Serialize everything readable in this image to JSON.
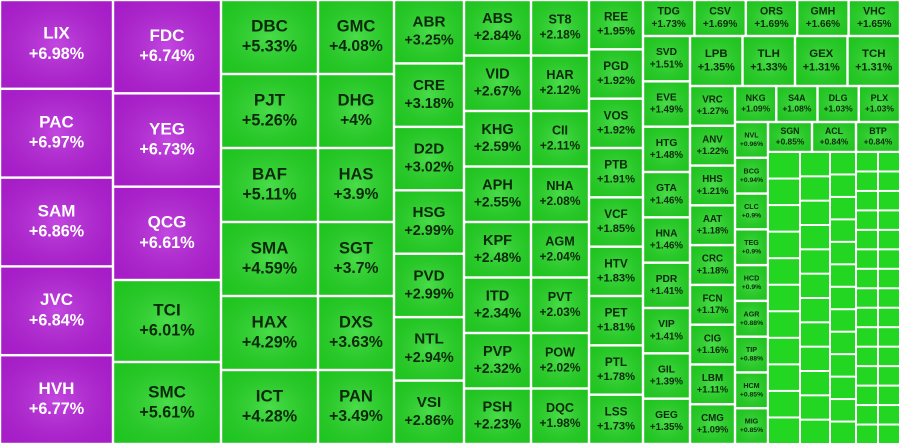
{
  "chart_data": {
    "type": "treemap",
    "tiles": [
      {
        "name": "LIX",
        "value": 6.98,
        "value_label": "+6.98%",
        "color": "#b51fd9"
      },
      {
        "name": "PAC",
        "value": 6.97,
        "value_label": "+6.97%",
        "color": "#b51fd9"
      },
      {
        "name": "SAM",
        "value": 6.86,
        "value_label": "+6.86%",
        "color": "#b51fd9"
      },
      {
        "name": "JVC",
        "value": 6.84,
        "value_label": "+6.84%",
        "color": "#b51fd9"
      },
      {
        "name": "HVH",
        "value": 6.77,
        "value_label": "+6.77%",
        "color": "#b51fd9"
      },
      {
        "name": "FDC",
        "value": 6.74,
        "value_label": "+6.74%",
        "color": "#b51fd9"
      },
      {
        "name": "YEG",
        "value": 6.73,
        "value_label": "+6.73%",
        "color": "#b51fd9"
      },
      {
        "name": "QCG",
        "value": 6.61,
        "value_label": "+6.61%",
        "color": "#b51fd9"
      },
      {
        "name": "TCI",
        "value": 6.01,
        "value_label": "+6.01%",
        "color": "#22d622"
      },
      {
        "name": "SMC",
        "value": 5.61,
        "value_label": "+5.61%",
        "color": "#22d622"
      },
      {
        "name": "DBC",
        "value": 5.33,
        "value_label": "+5.33%",
        "color": "#22d622"
      },
      {
        "name": "PJT",
        "value": 5.26,
        "value_label": "+5.26%",
        "color": "#22d622"
      },
      {
        "name": "BAF",
        "value": 5.11,
        "value_label": "+5.11%",
        "color": "#22d622"
      },
      {
        "name": "SMA",
        "value": 4.59,
        "value_label": "+4.59%",
        "color": "#22d622"
      },
      {
        "name": "HAX",
        "value": 4.29,
        "value_label": "+4.29%",
        "color": "#22d622"
      },
      {
        "name": "ICT",
        "value": 4.28,
        "value_label": "+4.28%",
        "color": "#22d622"
      },
      {
        "name": "GMC",
        "value": 4.08,
        "value_label": "+4.08%",
        "color": "#22d622"
      },
      {
        "name": "DHG",
        "value": 4,
        "value_label": "+4%",
        "color": "#22d622"
      },
      {
        "name": "HAS",
        "value": 3.9,
        "value_label": "+3.9%",
        "color": "#22d622"
      },
      {
        "name": "SGT",
        "value": 3.7,
        "value_label": "+3.7%",
        "color": "#22d622"
      },
      {
        "name": "DXS",
        "value": 3.63,
        "value_label": "+3.63%",
        "color": "#22d622"
      },
      {
        "name": "PAN",
        "value": 3.49,
        "value_label": "+3.49%",
        "color": "#22d622"
      },
      {
        "name": "ABR",
        "value": 3.25,
        "value_label": "+3.25%",
        "color": "#22d622"
      },
      {
        "name": "CRE",
        "value": 3.18,
        "value_label": "+3.18%",
        "color": "#22d622"
      },
      {
        "name": "D2D",
        "value": 3.02,
        "value_label": "+3.02%",
        "color": "#22d622"
      },
      {
        "name": "HSG",
        "value": 2.99,
        "value_label": "+2.99%",
        "color": "#22d622"
      },
      {
        "name": "PVD",
        "value": 2.99,
        "value_label": "+2.99%",
        "color": "#22d622"
      },
      {
        "name": "NTL",
        "value": 2.94,
        "value_label": "+2.94%",
        "color": "#22d622"
      },
      {
        "name": "VSI",
        "value": 2.86,
        "value_label": "+2.86%",
        "color": "#22d622"
      },
      {
        "name": "ABS",
        "value": 2.84,
        "value_label": "+2.84%",
        "color": "#22d622"
      },
      {
        "name": "VID",
        "value": 2.67,
        "value_label": "+2.67%",
        "color": "#22d622"
      },
      {
        "name": "KHG",
        "value": 2.59,
        "value_label": "+2.59%",
        "color": "#22d622"
      },
      {
        "name": "APH",
        "value": 2.55,
        "value_label": "+2.55%",
        "color": "#22d622"
      },
      {
        "name": "KPF",
        "value": 2.48,
        "value_label": "+2.48%",
        "color": "#22d622"
      },
      {
        "name": "ITD",
        "value": 2.34,
        "value_label": "+2.34%",
        "color": "#22d622"
      },
      {
        "name": "PVP",
        "value": 2.32,
        "value_label": "+2.32%",
        "color": "#22d622"
      },
      {
        "name": "PSH",
        "value": 2.23,
        "value_label": "+2.23%",
        "color": "#22d622"
      },
      {
        "name": "ST8",
        "value": 2.18,
        "value_label": "+2.18%",
        "color": "#22d622"
      },
      {
        "name": "HAR",
        "value": 2.12,
        "value_label": "+2.12%",
        "color": "#22d622"
      },
      {
        "name": "CII",
        "value": 2.11,
        "value_label": "+2.11%",
        "color": "#22d622"
      },
      {
        "name": "NHA",
        "value": 2.08,
        "value_label": "+2.08%",
        "color": "#22d622"
      },
      {
        "name": "AGM",
        "value": 2.04,
        "value_label": "+2.04%",
        "color": "#22d622"
      },
      {
        "name": "PVT",
        "value": 2.03,
        "value_label": "+2.03%",
        "color": "#22d622"
      },
      {
        "name": "POW",
        "value": 2.02,
        "value_label": "+2.02%",
        "color": "#22d622"
      },
      {
        "name": "DQC",
        "value": 1.98,
        "value_label": "+1.98%",
        "color": "#22d622"
      },
      {
        "name": "REE",
        "value": 1.95,
        "value_label": "+1.95%",
        "color": "#22d622"
      },
      {
        "name": "PGD",
        "value": 1.92,
        "value_label": "+1.92%",
        "color": "#22d622"
      },
      {
        "name": "VOS",
        "value": 1.92,
        "value_label": "+1.92%",
        "color": "#22d622"
      },
      {
        "name": "PTB",
        "value": 1.91,
        "value_label": "+1.91%",
        "color": "#22d622"
      },
      {
        "name": "VCF",
        "value": 1.85,
        "value_label": "+1.85%",
        "color": "#22d622"
      },
      {
        "name": "HTV",
        "value": 1.83,
        "value_label": "+1.83%",
        "color": "#22d622"
      },
      {
        "name": "PET",
        "value": 1.81,
        "value_label": "+1.81%",
        "color": "#22d622"
      },
      {
        "name": "PTL",
        "value": 1.78,
        "value_label": "+1.78%",
        "color": "#22d622"
      },
      {
        "name": "LSS",
        "value": 1.73,
        "value_label": "+1.73%",
        "color": "#22d622"
      },
      {
        "name": "TDG",
        "value": 1.73,
        "value_label": "+1.73%",
        "color": "#22d622"
      },
      {
        "name": "CSV",
        "value": 1.69,
        "value_label": "+1.69%",
        "color": "#22d622"
      },
      {
        "name": "ORS",
        "value": 1.69,
        "value_label": "+1.69%",
        "color": "#22d622"
      },
      {
        "name": "GMH",
        "value": 1.66,
        "value_label": "+1.66%",
        "color": "#22d622"
      },
      {
        "name": "VHC",
        "value": 1.65,
        "value_label": "+1.65%",
        "color": "#22d622"
      },
      {
        "name": "SVD",
        "value": 1.51,
        "value_label": "+1.51%",
        "color": "#22d622"
      },
      {
        "name": "EVE",
        "value": 1.49,
        "value_label": "+1.49%",
        "color": "#22d622"
      },
      {
        "name": "HTG",
        "value": 1.48,
        "value_label": "+1.48%",
        "color": "#22d622"
      },
      {
        "name": "GTA",
        "value": 1.46,
        "value_label": "+1.46%",
        "color": "#22d622"
      },
      {
        "name": "HNA",
        "value": 1.46,
        "value_label": "+1.46%",
        "color": "#22d622"
      },
      {
        "name": "PDR",
        "value": 1.41,
        "value_label": "+1.41%",
        "color": "#22d622"
      },
      {
        "name": "VIP",
        "value": 1.41,
        "value_label": "+1.41%",
        "color": "#22d622"
      },
      {
        "name": "GIL",
        "value": 1.39,
        "value_label": "+1.39%",
        "color": "#22d622"
      },
      {
        "name": "GEG",
        "value": 1.35,
        "value_label": "+1.35%",
        "color": "#22d622"
      },
      {
        "name": "LPB",
        "value": 1.35,
        "value_label": "+1.35%",
        "color": "#22d622"
      },
      {
        "name": "TLH",
        "value": 1.33,
        "value_label": "+1.33%",
        "color": "#22d622"
      },
      {
        "name": "GEX",
        "value": 1.31,
        "value_label": "+1.31%",
        "color": "#22d622"
      },
      {
        "name": "TCH",
        "value": 1.31,
        "value_label": "+1.31%",
        "color": "#22d622"
      },
      {
        "name": "VRC",
        "value": 1.27,
        "value_label": "+1.27%",
        "color": "#22d622"
      },
      {
        "name": "ANV",
        "value": 1.22,
        "value_label": "+1.22%",
        "color": "#22d622"
      },
      {
        "name": "HHS",
        "value": 1.21,
        "value_label": "+1.21%",
        "color": "#22d622"
      },
      {
        "name": "AAT",
        "value": 1.18,
        "value_label": "+1.18%",
        "color": "#22d622"
      },
      {
        "name": "CRC",
        "value": 1.18,
        "value_label": "+1.18%",
        "color": "#22d622"
      },
      {
        "name": "FCN",
        "value": 1.17,
        "value_label": "+1.17%",
        "color": "#22d622"
      },
      {
        "name": "CIG",
        "value": 1.16,
        "value_label": "+1.16%",
        "color": "#22d622"
      },
      {
        "name": "LBM",
        "value": 1.11,
        "value_label": "+1.11%",
        "color": "#22d622"
      },
      {
        "name": "CMG",
        "value": 1.09,
        "value_label": "+1.09%",
        "color": "#22d622"
      },
      {
        "name": "NKG",
        "value": 1.09,
        "value_label": "+1.09%",
        "color": "#22d622"
      },
      {
        "name": "S4A",
        "value": 1.08,
        "value_label": "+1.08%",
        "color": "#22d622"
      },
      {
        "name": "DLG",
        "value": 1.03,
        "value_label": "+1.03%",
        "color": "#22d622"
      },
      {
        "name": "PLX",
        "value": 1.03,
        "value_label": "+1.03%",
        "color": "#22d622"
      },
      {
        "name": "NVL",
        "value": 0.96,
        "value_label": "+0.96%",
        "color": "#22d622"
      },
      {
        "name": "BCG",
        "value": 0.94,
        "value_label": "+0.94%",
        "color": "#22d622"
      },
      {
        "name": "CLC",
        "value": 0.9,
        "value_label": "+0.9%",
        "color": "#22d622"
      },
      {
        "name": "TEG",
        "value": 0.9,
        "value_label": "+0.9%",
        "color": "#22d622"
      },
      {
        "name": "HCD",
        "value": 0.9,
        "value_label": "+0.9%",
        "color": "#22d622"
      },
      {
        "name": "AGR",
        "value": 0.88,
        "value_label": "+0.88%",
        "color": "#22d622"
      },
      {
        "name": "TIP",
        "value": 0.88,
        "value_label": "+0.88%",
        "color": "#22d622"
      },
      {
        "name": "HCM",
        "value": 0.85,
        "value_label": "+0.85%",
        "color": "#22d622"
      },
      {
        "name": "MIG",
        "value": 0.85,
        "value_label": "+0.85%",
        "color": "#22d622"
      },
      {
        "name": "SGN",
        "value": 0.85,
        "value_label": "+0.85%",
        "color": "#22d622"
      },
      {
        "name": "ACL",
        "value": 0.84,
        "value_label": "+0.84%",
        "color": "#22d622"
      },
      {
        "name": "BTP",
        "value": 0.84,
        "value_label": "+0.84%",
        "color": "#22d622"
      }
    ]
  }
}
